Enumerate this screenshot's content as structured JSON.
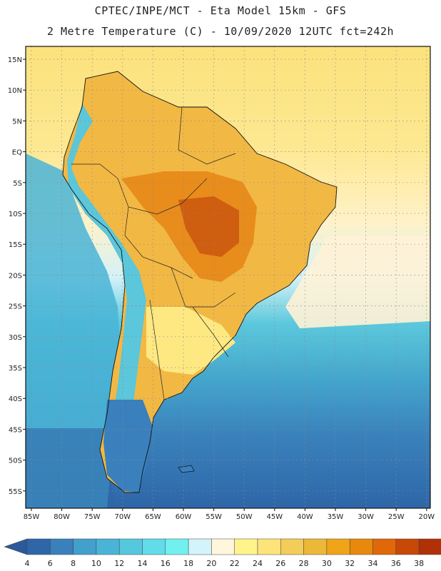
{
  "header": {
    "title_line1": "CPTEC/INPE/MCT -  Eta Model 15km - GFS",
    "title_line2": "2 Metre Temperature (C) - 10/09/2020 12UTC fct=242h"
  },
  "map": {
    "lat_labels": [
      "15N",
      "10N",
      "5N",
      "EQ",
      "5S",
      "10S",
      "15S",
      "20S",
      "25S",
      "30S",
      "35S",
      "40S",
      "45S",
      "50S",
      "55S"
    ],
    "lon_labels": [
      "85W",
      "80W",
      "75W",
      "70W",
      "65W",
      "60W",
      "55W",
      "50W",
      "45W",
      "40W",
      "35W",
      "30W",
      "25W",
      "20W"
    ]
  },
  "colorbar": {
    "labels": [
      "4",
      "6",
      "8",
      "10",
      "12",
      "14",
      "16",
      "18",
      "20",
      "22",
      "24",
      "26",
      "28",
      "30",
      "32",
      "34",
      "36",
      "38"
    ],
    "colors": [
      "#2e66a8",
      "#3a80bc",
      "#42a0cc",
      "#4ab4d6",
      "#56c8de",
      "#62dce8",
      "#72f0f0",
      "#d2f4fa",
      "#fff6dc",
      "#fff48c",
      "#fce47a",
      "#f4cc58",
      "#ecb838",
      "#f0a418",
      "#e8880c",
      "#e06808",
      "#c84808",
      "#b03008"
    ],
    "low_color": "#2a5a9a",
    "high_color": "#a8380c"
  }
}
